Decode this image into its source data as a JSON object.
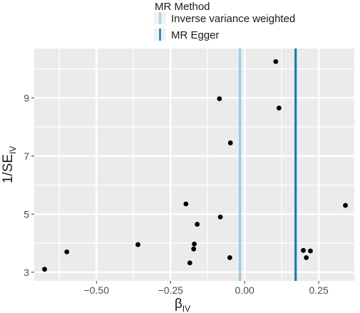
{
  "chart_data": {
    "type": "scatter",
    "xlabel": "β",
    "xlabel_sub": "IV",
    "ylabel": "1/SE",
    "ylabel_sub": "IV",
    "xlim": [
      -0.71,
      0.37
    ],
    "ylim": [
      2.7,
      10.7
    ],
    "x_ticks": [
      -0.5,
      -0.25,
      0.0,
      0.25
    ],
    "x_tick_labels": [
      "−0.50",
      "−0.25",
      "0.00",
      "0.25"
    ],
    "y_ticks": [
      3,
      5,
      7,
      9
    ],
    "y_tick_labels": [
      "3",
      "5",
      "7",
      "9"
    ],
    "grid": true,
    "legend": {
      "title": "MR Method",
      "placement": "top",
      "entries": [
        {
          "label": "Inverse variance weighted",
          "color": "#9ecae1"
        },
        {
          "label": "MR Egger",
          "color": "#1f78b4"
        }
      ]
    },
    "vlines": [
      {
        "name": "Inverse variance weighted",
        "x": -0.016,
        "color": "#9ecae1"
      },
      {
        "name": "MR Egger",
        "x": 0.172,
        "color": "#1f78b4"
      }
    ],
    "points": [
      {
        "x": -0.675,
        "y": 3.1
      },
      {
        "x": -0.6,
        "y": 3.7
      },
      {
        "x": -0.36,
        "y": 3.95
      },
      {
        "x": -0.198,
        "y": 5.35
      },
      {
        "x": -0.185,
        "y": 3.32
      },
      {
        "x": -0.172,
        "y": 3.8
      },
      {
        "x": -0.17,
        "y": 3.97
      },
      {
        "x": -0.16,
        "y": 4.65
      },
      {
        "x": -0.085,
        "y": 8.97
      },
      {
        "x": -0.082,
        "y": 4.9
      },
      {
        "x": -0.05,
        "y": 3.5
      },
      {
        "x": -0.048,
        "y": 7.45
      },
      {
        "x": 0.105,
        "y": 10.25
      },
      {
        "x": 0.116,
        "y": 8.65
      },
      {
        "x": 0.198,
        "y": 3.75
      },
      {
        "x": 0.208,
        "y": 3.5
      },
      {
        "x": 0.222,
        "y": 3.73
      },
      {
        "x": 0.34,
        "y": 5.3
      }
    ],
    "point_color": "#000000",
    "panel_color": "#ebebeb",
    "grid_color": "#ffffff"
  }
}
